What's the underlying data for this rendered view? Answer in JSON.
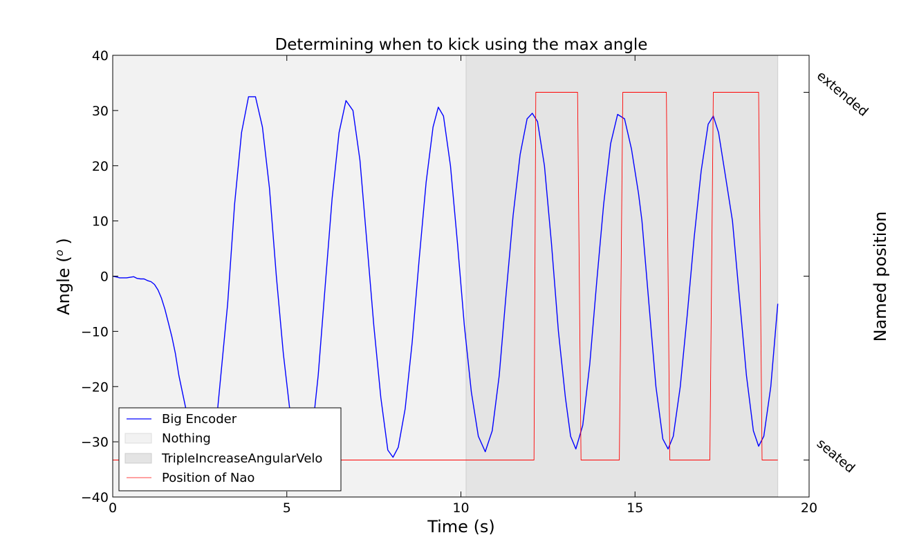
{
  "chart_data": {
    "type": "line",
    "title": "Determining when to kick using the max angle",
    "xlabel": "Time (s)",
    "ylabel": "Angle (°)",
    "ylabel_main": "Angle (",
    "ylabel_deg": "o",
    "ylabel_end": " )",
    "y2label": "Named position",
    "xlim": [
      0,
      20
    ],
    "ylim": [
      -40,
      40
    ],
    "xticks": [
      0,
      5,
      10,
      15,
      20
    ],
    "yticks": [
      -40,
      -30,
      -20,
      -10,
      0,
      10,
      20,
      30,
      40
    ],
    "xtick_labels": [
      "0",
      "5",
      "10",
      "15",
      "20"
    ],
    "ytick_labels": [
      "−40",
      "−30",
      "−20",
      "−10",
      "0",
      "10",
      "20",
      "30",
      "40"
    ],
    "y2_categories": [
      "seated",
      "extended"
    ],
    "y2_category_values": [
      -33.3,
      33.3
    ],
    "y2_ticks_extra": [
      0
    ],
    "grid": false,
    "legend_placement": "lower-left",
    "spans": [
      {
        "name": "Nothing",
        "x_start": 0,
        "x_end": 10.15,
        "color": "#f2f2f2"
      },
      {
        "name": "TripleIncreaseAngularVelo",
        "x_start": 10.15,
        "x_end": 19.1,
        "color": "#e4e4e4"
      }
    ],
    "series": [
      {
        "name": "Big Encoder",
        "color": "#0000ff",
        "x": [
          0,
          0.2,
          0.4,
          0.6,
          0.7,
          0.8,
          0.9,
          1.0,
          1.1,
          1.2,
          1.3,
          1.4,
          1.5,
          1.6,
          1.7,
          1.8,
          1.9,
          2.0,
          2.2,
          2.4,
          2.6,
          2.8,
          3.0,
          3.3,
          3.5,
          3.7,
          3.9,
          4.1,
          4.3,
          4.5,
          4.7,
          4.9,
          5.1,
          5.3,
          5.5,
          5.7,
          5.9,
          6.1,
          6.3,
          6.5,
          6.7,
          6.9,
          7.1,
          7.3,
          7.5,
          7.7,
          7.9,
          8.05,
          8.2,
          8.4,
          8.6,
          8.8,
          9.0,
          9.2,
          9.35,
          9.5,
          9.7,
          9.9,
          10.1,
          10.3,
          10.5,
          10.7,
          10.9,
          11.1,
          11.3,
          11.5,
          11.7,
          11.9,
          12.05,
          12.2,
          12.4,
          12.6,
          12.8,
          13.0,
          13.15,
          13.3,
          13.5,
          13.7,
          13.9,
          14.1,
          14.3,
          14.5,
          14.7,
          14.9,
          15.1,
          15.2,
          15.4,
          15.6,
          15.8,
          15.95,
          16.1,
          16.3,
          16.5,
          16.7,
          16.9,
          17.1,
          17.25,
          17.4,
          17.6,
          17.8,
          18.0,
          18.2,
          18.4,
          18.55,
          18.7,
          18.9,
          19.1
        ],
        "y": [
          0,
          -0.3,
          -0.3,
          -0.1,
          -0.4,
          -0.5,
          -0.5,
          -0.8,
          -1.0,
          -1.5,
          -2.5,
          -4.0,
          -6.0,
          -8.5,
          -11.0,
          -14.0,
          -18.0,
          -21.0,
          -27.0,
          -32.0,
          -35.0,
          -32.0,
          -25.0,
          -5.0,
          13.0,
          26.0,
          32.5,
          32.5,
          27.0,
          16.0,
          0.0,
          -14.0,
          -25.0,
          -33.0,
          -33.5,
          -30.0,
          -18.0,
          -2.0,
          14.0,
          26.0,
          31.8,
          30.0,
          21.0,
          6.0,
          -9.0,
          -22.0,
          -31.5,
          -32.8,
          -31.0,
          -24.0,
          -12.0,
          3.0,
          17.0,
          27.0,
          30.6,
          29.0,
          20.0,
          6.0,
          -9.0,
          -21.0,
          -29.0,
          -31.8,
          -28.0,
          -18.0,
          -3.0,
          11.0,
          22.0,
          28.5,
          29.5,
          28.0,
          20.0,
          6.0,
          -10.0,
          -22.0,
          -29.0,
          -31.3,
          -27.0,
          -16.0,
          -1.0,
          13.0,
          24.0,
          29.3,
          28.5,
          23.0,
          15.0,
          10.0,
          -5.0,
          -20.0,
          -29.5,
          -31.3,
          -29.0,
          -20.0,
          -7.0,
          7.0,
          19.0,
          27.5,
          29.0,
          26.0,
          18.0,
          10.0,
          -4.0,
          -18.0,
          -28.0,
          -30.8,
          -29.0,
          -20.0,
          -5.0
        ]
      },
      {
        "name": "Position of Nao",
        "color": "#ff0000",
        "x": [
          0,
          12.1,
          12.15,
          13.35,
          13.45,
          14.55,
          14.65,
          15.9,
          16.0,
          17.15,
          17.25,
          18.55,
          18.65,
          19.1
        ],
        "y": [
          -33.3,
          -33.3,
          33.3,
          33.3,
          -33.3,
          -33.3,
          33.3,
          33.3,
          -33.3,
          -33.3,
          33.3,
          33.3,
          -33.3,
          -33.3
        ]
      }
    ],
    "legend": [
      "Big Encoder",
      "Nothing",
      "TripleIncreaseAngularVelo",
      "Position of Nao"
    ]
  }
}
